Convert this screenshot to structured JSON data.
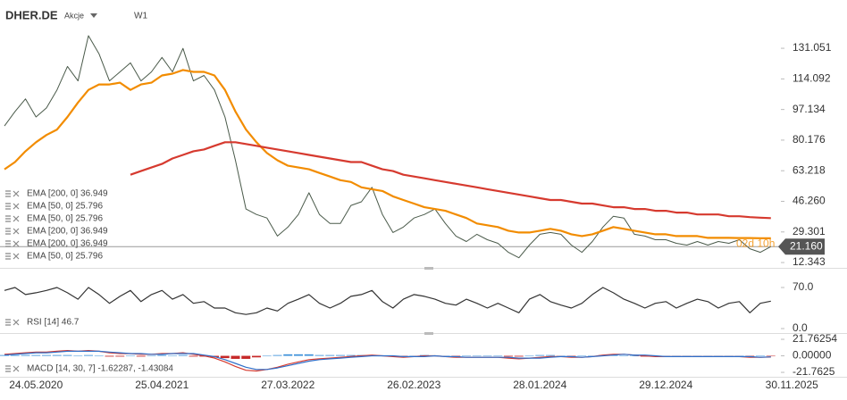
{
  "header": {
    "symbol": "DHER.DE",
    "kind": "Akcje",
    "interval": "W1"
  },
  "chart_data": [
    {
      "type": "line",
      "categories": [
        null,
        null,
        null,
        "24.05.2020",
        null,
        null,
        null,
        null,
        null,
        null,
        null,
        null,
        null,
        null,
        null,
        "25.04.2021",
        null,
        null,
        null,
        null,
        null,
        null,
        null,
        null,
        null,
        null,
        null,
        "27.03.2022",
        null,
        null,
        null,
        null,
        null,
        null,
        null,
        null,
        null,
        null,
        null,
        "26.02.2023",
        null,
        null,
        null,
        null,
        null,
        null,
        null,
        null,
        null,
        null,
        null,
        "28.01.2024",
        null,
        null,
        null,
        null,
        null,
        null,
        null,
        null,
        null,
        null,
        null,
        "29.12.2024",
        null,
        null,
        null,
        null,
        null,
        null,
        null,
        null,
        null,
        null,
        null,
        "30.11.2025"
      ],
      "ylim": [
        9.4,
        157.8
      ],
      "yticks": [
        12.343,
        29.301,
        {
          "value": 46.26,
          "label": "46.260"
        },
        63.218,
        80.176,
        97.134,
        114.092,
        131.051
      ],
      "series": [
        {
          "color": "#4a5a4a",
          "width": 1,
          "values": [
            88,
            96,
            103,
            93,
            98,
            108,
            121,
            113,
            138,
            128,
            113,
            118,
            123,
            113,
            118,
            126,
            118,
            131,
            113,
            116,
            108,
            93,
            69,
            42,
            39,
            37,
            27,
            32,
            39,
            51,
            39,
            34,
            34,
            44,
            46,
            54,
            39,
            29,
            32,
            37,
            39,
            42,
            34,
            27,
            24,
            28,
            25,
            23,
            18,
            15,
            22,
            28,
            29,
            28,
            22,
            18,
            24,
            32,
            38,
            37,
            28,
            27,
            25,
            25,
            23,
            22,
            24,
            22,
            24,
            23,
            25,
            20,
            18,
            21.16,
            null,
            null
          ]
        },
        {
          "color": "#f28c00",
          "width": 2.2,
          "values": [
            64,
            68,
            74,
            79,
            83,
            86,
            93,
            101,
            108,
            111,
            111,
            112,
            108,
            111,
            112,
            116,
            117,
            119,
            118,
            118,
            116,
            108,
            96,
            86,
            79,
            73,
            69,
            66,
            65,
            64,
            62,
            60,
            58,
            57,
            54,
            53,
            52,
            49,
            47,
            45,
            43,
            42,
            41,
            39,
            37,
            34,
            33,
            32,
            30,
            29,
            29,
            30,
            31,
            30,
            28,
            27,
            28,
            30,
            32,
            31,
            30,
            29,
            28,
            28,
            27,
            27,
            27,
            26,
            26,
            26,
            25.9,
            25.9,
            25.8,
            25.796,
            null,
            null
          ]
        },
        {
          "color": "#d63a2f",
          "width": 2.2,
          "values": [
            null,
            null,
            null,
            null,
            null,
            null,
            null,
            null,
            null,
            null,
            null,
            null,
            61,
            63,
            65,
            67,
            70,
            72,
            74,
            75,
            77,
            79,
            79,
            78,
            77,
            76,
            75,
            74,
            73,
            72,
            71,
            70,
            69,
            68,
            68,
            66,
            64,
            63,
            61,
            60,
            59,
            58,
            57,
            56,
            55,
            54,
            53,
            52,
            51,
            50,
            49,
            48,
            47,
            47,
            46,
            45,
            45,
            44,
            43,
            43,
            42,
            42,
            41,
            41,
            40,
            40,
            39,
            39,
            39,
            38,
            38,
            37.5,
            37.2,
            36.949,
            null,
            null
          ]
        }
      ],
      "legend": [
        "EMA [200, 0] 36.949",
        "EMA [50, 0] 25.796",
        "EMA [50, 0] 25.796",
        "EMA [200, 0] 36.949",
        "EMA [200, 0] 36.949",
        "EMA [50, 0] 25.796"
      ],
      "last_price": {
        "value": 21.16,
        "label": "21.160"
      },
      "countdown": "02d 10h"
    },
    {
      "type": "line",
      "ylim": [
        -9.1,
        100.4
      ],
      "yticks": [
        {
          "value": 70,
          "label": "70.0"
        },
        {
          "value": 0,
          "label": "0.0"
        }
      ],
      "series": [
        {
          "color": "#333333",
          "width": 1.2,
          "values": [
            65,
            70,
            58,
            61,
            65,
            70,
            61,
            50,
            70,
            58,
            43,
            55,
            65,
            46,
            58,
            65,
            50,
            58,
            43,
            46,
            35,
            35,
            27,
            24,
            27,
            35,
            30,
            43,
            50,
            58,
            43,
            35,
            43,
            55,
            58,
            65,
            46,
            35,
            50,
            58,
            55,
            50,
            43,
            40,
            50,
            43,
            35,
            43,
            35,
            27,
            50,
            58,
            46,
            40,
            35,
            43,
            58,
            70,
            61,
            50,
            43,
            35,
            43,
            46,
            35,
            43,
            50,
            46,
            35,
            43,
            46,
            27,
            43,
            46.7,
            null,
            null
          ]
        }
      ],
      "legend": [
        "RSI [14] 46.7"
      ]
    },
    {
      "type": "macd",
      "ylim": [
        -27.6,
        26.5
      ],
      "yticks": [
        21.76254,
        {
          "value": 0,
          "label": "0.00000"
        },
        -21.7625
      ],
      "histogram": {
        "positive_color": "#3a8fd9",
        "negative_color": "#c62828",
        "values": [
          1,
          1,
          1,
          1,
          1,
          1,
          1,
          0,
          1,
          0,
          -1,
          -1,
          0,
          -1,
          0,
          1,
          0,
          1,
          -1,
          -1,
          -2,
          -3,
          -4,
          -4,
          -2,
          0,
          1,
          2,
          2,
          2,
          1,
          1,
          1,
          1,
          1,
          1,
          0,
          -1,
          -1,
          0,
          1,
          0,
          0,
          -1,
          0,
          0,
          0,
          0,
          -1,
          -1,
          0,
          1,
          1,
          0,
          -1,
          0,
          0,
          1,
          1,
          0,
          0,
          -1,
          -1,
          0,
          0,
          0,
          0,
          0,
          0,
          0,
          0,
          -1,
          0,
          -0.19,
          null,
          null
        ]
      },
      "series": [
        {
          "color": "#d63a2f",
          "width": 1.2,
          "values": [
            2,
            3,
            4,
            5,
            5,
            6,
            7,
            6,
            7,
            6,
            4,
            3,
            3,
            2,
            2,
            3,
            3,
            4,
            2,
            0,
            -3,
            -8,
            -14,
            -19,
            -20,
            -18,
            -15,
            -11,
            -8,
            -5,
            -4,
            -3,
            -2,
            -1,
            0,
            1,
            0,
            -1,
            -2,
            -1,
            0,
            0,
            -1,
            -2,
            -2,
            -2,
            -2,
            -2,
            -3,
            -4,
            -3,
            -2,
            -1,
            -1,
            -2,
            -2,
            -1,
            1,
            2,
            2,
            1,
            0,
            -1,
            -1,
            -1,
            -1,
            -1,
            -1,
            -1,
            -1,
            -1,
            -2,
            -2,
            -1.62287,
            null,
            null
          ]
        },
        {
          "color": "#2f6fc9",
          "width": 1.2,
          "values": [
            1,
            2,
            3,
            4,
            4,
            5,
            6,
            6,
            6,
            6,
            5,
            4,
            3,
            3,
            2,
            2,
            3,
            3,
            3,
            1,
            -1,
            -5,
            -10,
            -15,
            -18,
            -18,
            -16,
            -13,
            -10,
            -7,
            -5,
            -4,
            -3,
            -2,
            -1,
            0,
            0,
            0,
            -1,
            -1,
            -1,
            0,
            -1,
            -1,
            -2,
            -2,
            -2,
            -2,
            -2,
            -3,
            -3,
            -3,
            -2,
            -1,
            -1,
            -2,
            -1,
            0,
            1,
            2,
            1,
            1,
            0,
            -1,
            -1,
            -1,
            -1,
            -1,
            -1,
            -1,
            -1,
            -1,
            -2,
            -1.43084,
            null,
            null
          ]
        }
      ],
      "legend": [
        "MACD [14, 30, 7] -1.62287, -1.43084"
      ]
    }
  ]
}
